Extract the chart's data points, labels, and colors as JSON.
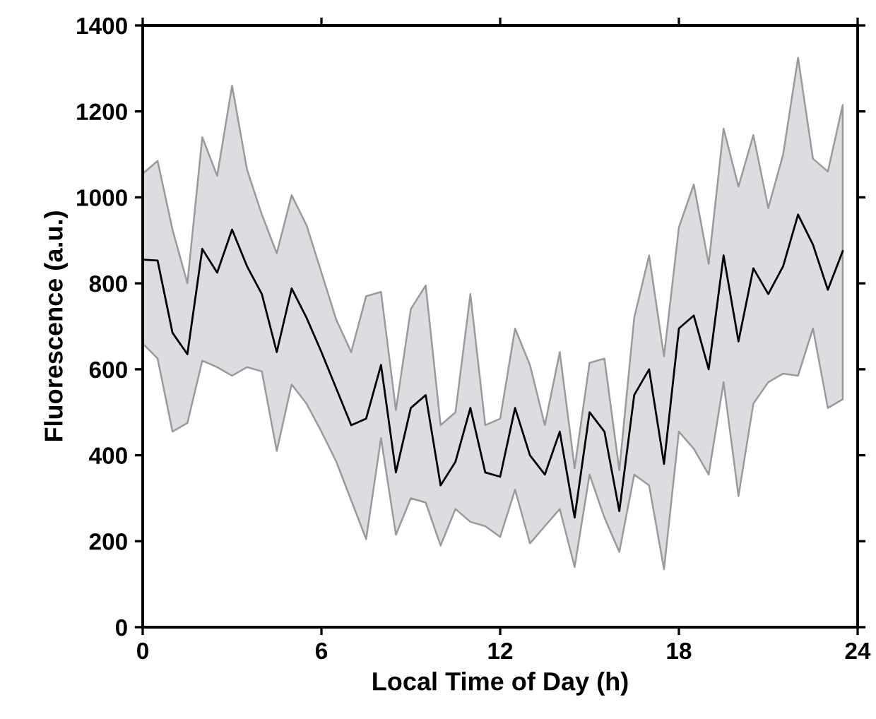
{
  "chart_data": {
    "type": "line",
    "xlabel": "Local Time of Day (h)",
    "ylabel": "Fluorescence (a.u.)",
    "xlim": [
      0,
      24
    ],
    "xticks": [
      0,
      6,
      12,
      18,
      24
    ],
    "ylim": [
      0,
      1400
    ],
    "yticks": [
      0,
      200,
      400,
      600,
      800,
      1000,
      1200,
      1400
    ],
    "grid": false,
    "legend": false,
    "marker": "none",
    "line_style": "solid",
    "series": [
      {
        "color": "#000000",
        "x": [
          0,
          0.5,
          1,
          1.5,
          2,
          2.5,
          3,
          3.5,
          4,
          4.5,
          5,
          5.5,
          6,
          6.5,
          7,
          7.5,
          8,
          8.5,
          9,
          9.5,
          10,
          10.5,
          11,
          11.5,
          12,
          12.5,
          13,
          13.5,
          14,
          14.5,
          15,
          15.5,
          16,
          16.5,
          17,
          17.5,
          18,
          18.5,
          19,
          19.5,
          20,
          20.5,
          21,
          21.5,
          22,
          22.5,
          23,
          23.5
        ],
        "values": [
          855,
          853,
          685,
          635,
          880,
          825,
          925,
          840,
          775,
          640,
          788,
          720,
          640,
          555,
          470,
          485,
          610,
          360,
          510,
          540,
          330,
          385,
          510,
          360,
          350,
          510,
          400,
          355,
          455,
          255,
          500,
          455,
          270,
          540,
          600,
          380,
          695,
          725,
          600,
          865,
          665,
          835,
          775,
          840,
          960,
          890,
          785,
          875
        ],
        "upper": [
          1055,
          1085,
          925,
          800,
          1140,
          1050,
          1260,
          1065,
          960,
          870,
          1005,
          935,
          825,
          715,
          640,
          770,
          780,
          505,
          740,
          795,
          470,
          500,
          775,
          470,
          485,
          695,
          610,
          470,
          640,
          370,
          615,
          625,
          365,
          720,
          865,
          630,
          930,
          1030,
          845,
          1160,
          1025,
          1145,
          975,
          1100,
          1325,
          1090,
          1060,
          1215
        ],
        "lower": [
          660,
          625,
          455,
          475,
          620,
          605,
          585,
          605,
          595,
          410,
          565,
          520,
          455,
          385,
          295,
          205,
          440,
          215,
          300,
          290,
          190,
          275,
          245,
          235,
          210,
          320,
          195,
          235,
          275,
          140,
          355,
          255,
          175,
          355,
          330,
          135,
          455,
          415,
          355,
          570,
          305,
          520,
          570,
          590,
          585,
          695,
          510,
          530
        ]
      }
    ]
  }
}
